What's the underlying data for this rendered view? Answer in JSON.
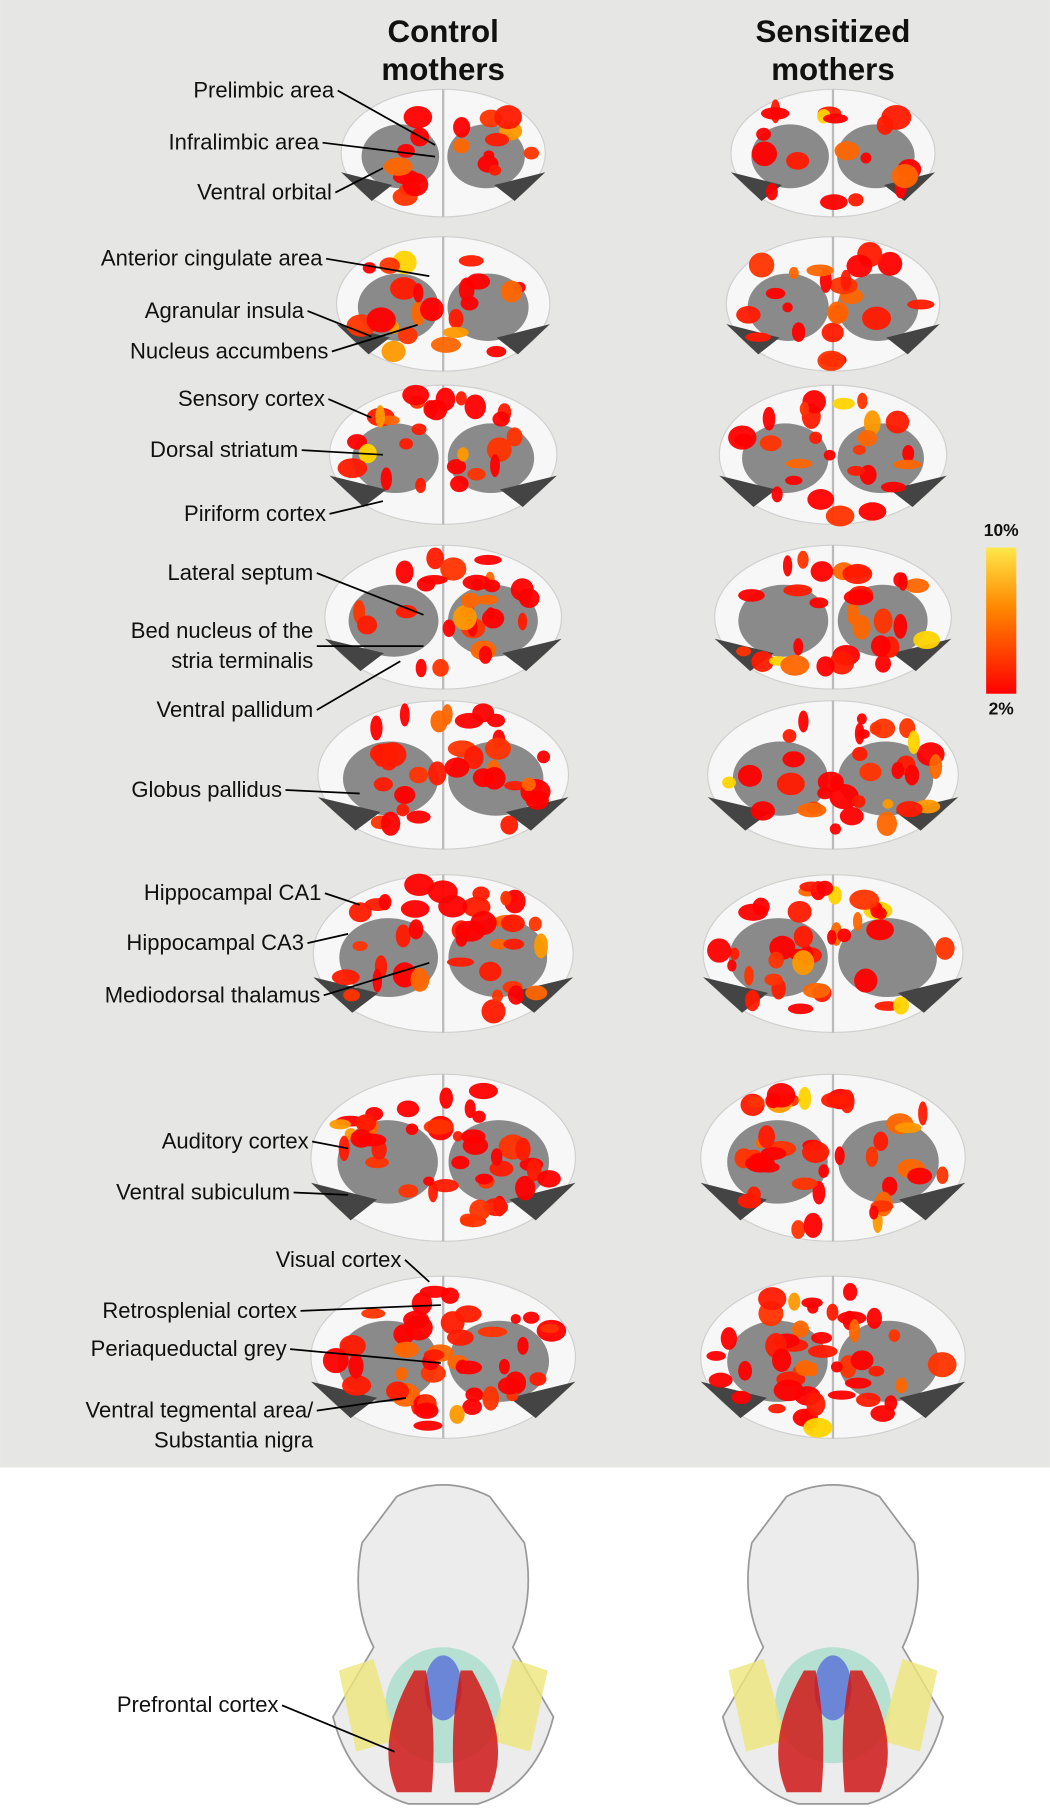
{
  "columns": [
    [
      "Control",
      "mothers"
    ],
    [
      "Sensitized",
      "mothers"
    ]
  ],
  "labels": [
    [
      "Prelimbic area"
    ],
    [
      "Infralimbic area"
    ],
    [
      "Ventral orbital"
    ],
    [
      "Anterior cingulate area"
    ],
    [
      "Agranular insula"
    ],
    [
      "Nucleus accumbens"
    ],
    [
      "Sensory cortex"
    ],
    [
      "Dorsal striatum"
    ],
    [
      "Piriform cortex"
    ],
    [
      "Lateral septum"
    ],
    [
      "Bed nucleus of the",
      "stria terminalis"
    ],
    [
      "Ventral pallidum"
    ],
    [
      "Globus pallidus"
    ],
    [
      "Hippocampal CA1"
    ],
    [
      "Hippocampal CA3"
    ],
    [
      "Mediodorsal thalamus"
    ],
    [
      "Auditory cortex"
    ],
    [
      "Ventral subiculum"
    ],
    [
      "Visual cortex"
    ],
    [
      "Retrosplenial cortex"
    ],
    [
      "Periaqueductal grey"
    ],
    [
      "Ventral tegmental area/",
      "Substantia nigra"
    ],
    [
      "Prefrontal cortex"
    ]
  ],
  "colorbar": {
    "top": "10%",
    "bottom": "2%"
  }
}
